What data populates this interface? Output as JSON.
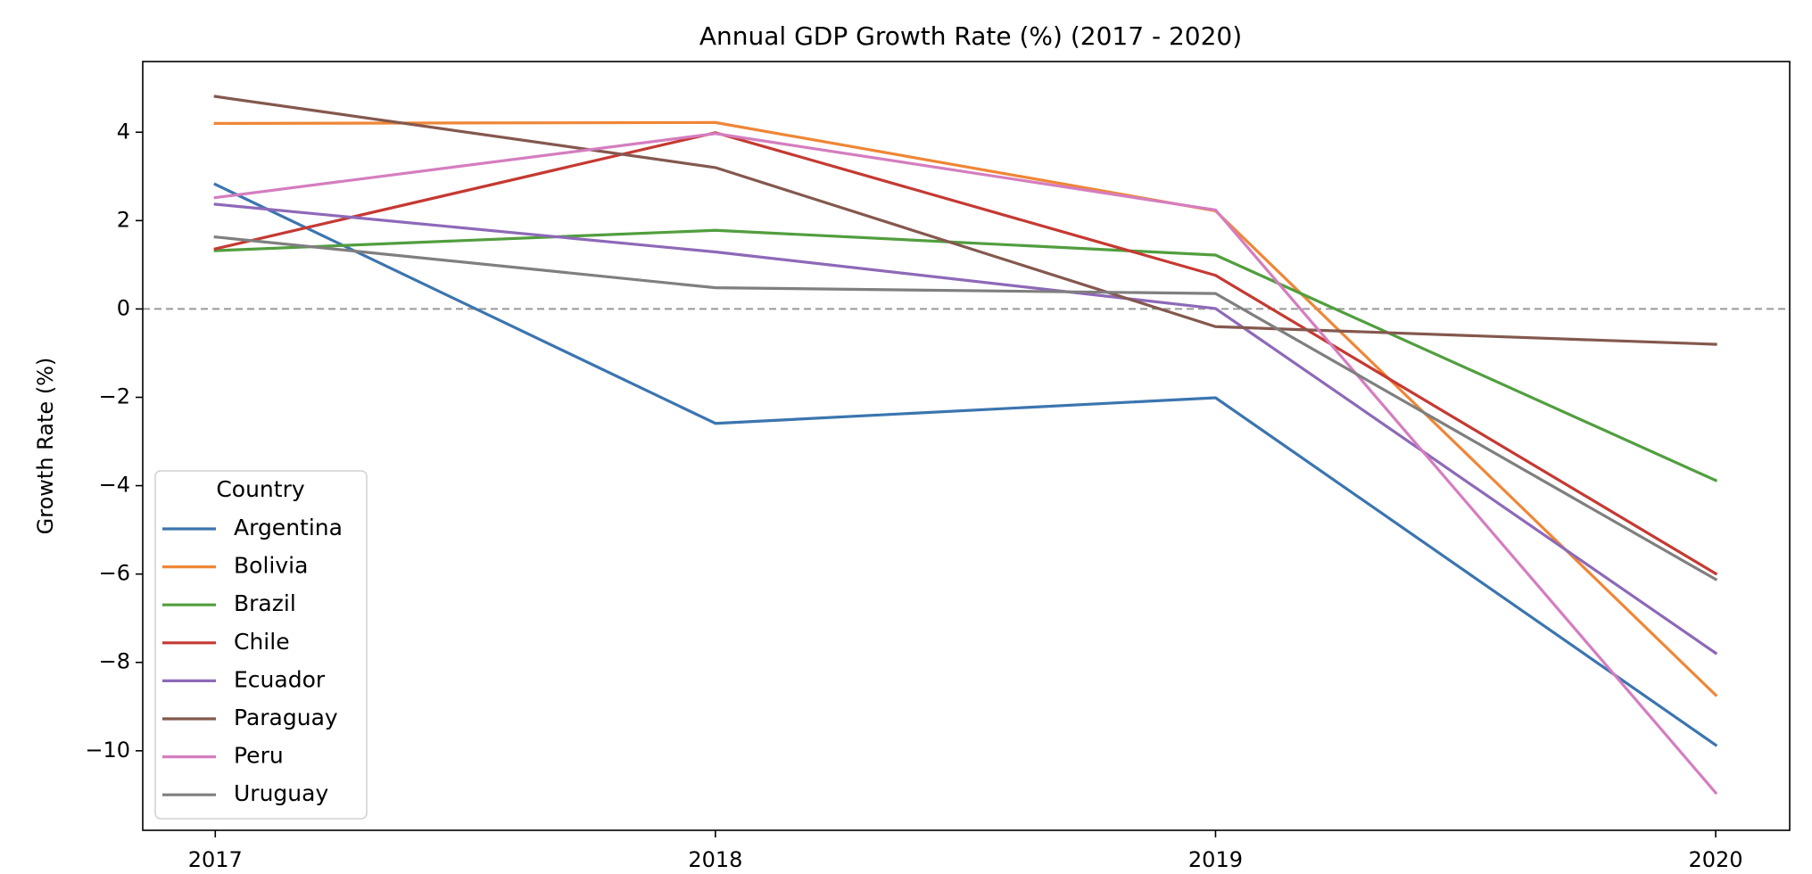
{
  "chart_data": {
    "type": "line",
    "title": "Annual GDP Growth Rate (%) (2017 - 2020)",
    "xlabel": "",
    "ylabel": "Growth Rate (%)",
    "x": [
      "2017",
      "2018",
      "2019",
      "2020"
    ],
    "xlim": [
      2016.855,
      2020.148
    ],
    "ylim": [
      -11.8,
      5.6
    ],
    "yticks": [
      "4",
      "2",
      "0",
      "−2",
      "−4",
      "−6",
      "−8",
      "−10"
    ],
    "reference_line": {
      "y": 0,
      "style": "dashed",
      "color": "#999999"
    },
    "legend": {
      "title": "Country",
      "position": "lower-left"
    },
    "series": [
      {
        "name": "Argentina",
        "color": "#3b75af",
        "values": [
          2.82,
          -2.59,
          -2.01,
          -9.87
        ]
      },
      {
        "name": "Bolivia",
        "color": "#ef8636",
        "values": [
          4.2,
          4.22,
          2.22,
          -8.74
        ]
      },
      {
        "name": "Brazil",
        "color": "#519e3e",
        "values": [
          1.32,
          1.78,
          1.22,
          -3.88
        ]
      },
      {
        "name": "Chile",
        "color": "#c53932",
        "values": [
          1.36,
          3.99,
          0.76,
          -5.99
        ]
      },
      {
        "name": "Ecuador",
        "color": "#8d69b8",
        "values": [
          2.37,
          1.29,
          0.01,
          -7.79
        ]
      },
      {
        "name": "Paraguay",
        "color": "#84584e",
        "values": [
          4.81,
          3.2,
          -0.4,
          -0.8
        ]
      },
      {
        "name": "Peru",
        "color": "#d57dbf",
        "values": [
          2.52,
          3.97,
          2.24,
          -10.95
        ]
      },
      {
        "name": "Uruguay",
        "color": "#7f7f7f",
        "values": [
          1.63,
          0.48,
          0.35,
          -6.12
        ]
      }
    ]
  }
}
